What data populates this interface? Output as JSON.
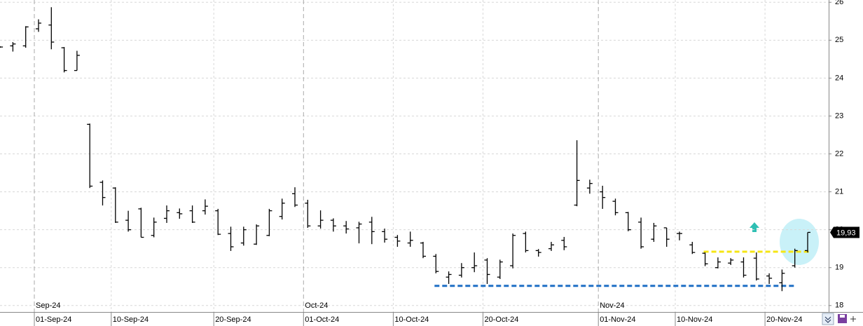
{
  "chart_data": {
    "type": "ohlc",
    "x": [
      "28-Aug-24",
      "29-Aug-24",
      "30-Aug-24",
      "02-Sep-24",
      "03-Sep-24",
      "04-Sep-24",
      "05-Sep-24",
      "06-Sep-24",
      "09-Sep-24",
      "10-Sep-24",
      "11-Sep-24",
      "12-Sep-24",
      "13-Sep-24",
      "16-Sep-24",
      "17-Sep-24",
      "18-Sep-24",
      "19-Sep-24",
      "20-Sep-24",
      "23-Sep-24",
      "24-Sep-24",
      "25-Sep-24",
      "26-Sep-24",
      "27-Sep-24",
      "30-Sep-24",
      "01-Oct-24",
      "02-Oct-24",
      "03-Oct-24",
      "04-Oct-24",
      "07-Oct-24",
      "08-Oct-24",
      "09-Oct-24",
      "10-Oct-24",
      "11-Oct-24",
      "14-Oct-24",
      "15-Oct-24",
      "16-Oct-24",
      "17-Oct-24",
      "18-Oct-24",
      "21-Oct-24",
      "22-Oct-24",
      "23-Oct-24",
      "24-Oct-24",
      "25-Oct-24",
      "28-Oct-24",
      "29-Oct-24",
      "30-Oct-24",
      "31-Oct-24",
      "01-Nov-24",
      "04-Nov-24",
      "05-Nov-24",
      "06-Nov-24",
      "07-Nov-24",
      "08-Nov-24",
      "11-Nov-24",
      "12-Nov-24",
      "13-Nov-24",
      "14-Nov-24",
      "15-Nov-24",
      "18-Nov-24",
      "19-Nov-24",
      "20-Nov-24",
      "21-Nov-24",
      "22-Nov-24",
      "25-Nov-24"
    ],
    "open": [
      24.82,
      24.85,
      24.85,
      25.3,
      25.4,
      24.8,
      24.2,
      22.78,
      21.25,
      21.1,
      20.25,
      20.55,
      19.85,
      20.3,
      20.45,
      20.5,
      20.5,
      20.5,
      19.9,
      19.65,
      19.62,
      19.85,
      20.35,
      20.95,
      20.7,
      20.1,
      20.25,
      20.1,
      20.05,
      20.2,
      19.95,
      19.8,
      19.65,
      19.65,
      19.3,
      18.75,
      18.8,
      19.0,
      19.2,
      18.75,
      19.05,
      19.9,
      19.45,
      19.5,
      19.72,
      20.65,
      21.1,
      21.0,
      20.75,
      20.45,
      20.2,
      19.75,
      20.05,
      19.9,
      19.6,
      19.38,
      19.0,
      19.12,
      19.15,
      19.25,
      18.78,
      18.6,
      19.05,
      19.45
    ],
    "high": [
      24.84,
      24.95,
      25.37,
      25.55,
      25.87,
      24.82,
      24.72,
      22.8,
      21.3,
      21.12,
      20.5,
      20.58,
      20.32,
      20.64,
      20.56,
      20.64,
      20.8,
      20.55,
      20.08,
      20.08,
      20.14,
      20.55,
      20.82,
      21.12,
      20.79,
      20.51,
      20.3,
      20.23,
      20.21,
      20.34,
      20.03,
      19.86,
      19.95,
      19.68,
      19.36,
      18.9,
      19.12,
      19.4,
      19.25,
      19.21,
      19.9,
      19.95,
      19.49,
      19.68,
      19.81,
      22.36,
      21.32,
      21.16,
      20.82,
      20.47,
      20.32,
      20.18,
      20.05,
      19.95,
      19.68,
      19.4,
      19.27,
      19.25,
      19.27,
      19.4,
      18.85,
      18.95,
      19.5,
      19.93
    ],
    "low": [
      24.8,
      24.7,
      24.8,
      25.22,
      24.76,
      24.15,
      24.2,
      21.1,
      20.64,
      20.18,
      19.95,
      19.8,
      19.8,
      20.18,
      20.29,
      20.18,
      20.4,
      19.86,
      19.44,
      19.58,
      19.6,
      19.83,
      20.27,
      20.6,
      20.05,
      20.03,
      19.95,
      19.9,
      19.64,
      19.62,
      19.66,
      19.55,
      19.55,
      19.25,
      18.85,
      18.57,
      18.74,
      18.88,
      18.57,
      18.7,
      18.98,
      19.4,
      19.29,
      19.44,
      19.46,
      20.62,
      20.95,
      20.55,
      20.38,
      19.96,
      19.5,
      19.68,
      19.55,
      19.72,
      19.36,
      19.04,
      18.98,
      19.07,
      18.74,
      18.66,
      18.57,
      18.38,
      19.0,
      19.4
    ],
    "close": [
      24.82,
      24.9,
      25.35,
      25.45,
      24.95,
      24.2,
      24.6,
      21.15,
      20.85,
      20.2,
      20.0,
      19.8,
      20.2,
      20.5,
      20.42,
      20.2,
      20.62,
      19.88,
      19.55,
      20.0,
      20.1,
      20.5,
      20.7,
      20.65,
      20.1,
      20.25,
      20.1,
      20.02,
      20.15,
      19.95,
      19.75,
      19.7,
      19.72,
      19.3,
      18.9,
      18.82,
      19.0,
      19.05,
      18.82,
      19.15,
      19.85,
      19.45,
      19.4,
      19.6,
      19.55,
      21.3,
      21.22,
      20.85,
      20.45,
      20.0,
      19.55,
      20.1,
      19.75,
      19.9,
      19.4,
      19.1,
      19.15,
      19.2,
      18.8,
      18.7,
      18.72,
      18.85,
      19.45,
      19.93
    ],
    "color": "#000000",
    "ylim": [
      17.83,
      26.06
    ],
    "yticks": [
      18,
      19,
      20,
      21,
      22,
      23,
      24,
      25,
      26
    ],
    "xticks": [
      "01-Sep-24",
      "10-Sep-24",
      "20-Sep-24",
      "01-Oct-24",
      "10-Oct-24",
      "20-Oct-24",
      "01-Nov-24",
      "10-Nov-24",
      "20-Nov-24"
    ],
    "month_labels": [
      "Sep-24",
      "Oct-24",
      "Nov-24"
    ],
    "grid": true,
    "last_price": {
      "value": 19.93,
      "label": "19,93"
    },
    "levels": [
      {
        "value": 18.52,
        "from": "15-Oct-24",
        "to": "22-Nov-24",
        "color": "#1f6fc5"
      },
      {
        "value": 19.42,
        "from": "13-Nov-24",
        "to": "25-Nov-24",
        "color": "#f5e614"
      }
    ]
  }
}
